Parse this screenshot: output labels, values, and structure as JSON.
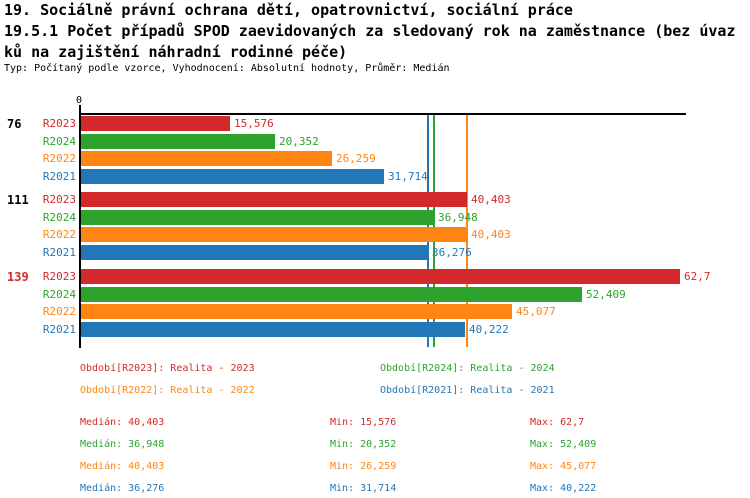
{
  "title": {
    "line1": "19. Sociálně právní ochrana dětí, opatrovnictví, sociální práce",
    "line2": "19.5.1 Počet případů SPOD zaevidovaných za sledovaný rok na zaměstnance (bez úvaz",
    "line3": "ků na zajištění náhradní rodinné péče)",
    "meta": "Typ: Počítaný podle vzorce, Vyhodnocení: Absolutní hodnoty, Průměr: Medián"
  },
  "colors": {
    "r2023": "#d4292a",
    "r2024": "#2da32d",
    "r2022": "#ff8512",
    "r2021": "#2277b8",
    "axis": "#000000",
    "background": "#ffffff"
  },
  "chart_data": {
    "type": "bar",
    "orientation": "horizontal",
    "title": "19.5.1 Počet případů SPOD zaevidovaných za sledovaný rok na zaměstnance (bez úvazků na zajištění náhradní rodinné péče)",
    "x_origin_label": "0",
    "xlim": [
      0,
      63.4
    ],
    "grid": false,
    "legend_position": "bottom",
    "series": [
      {
        "name": "R2023",
        "color": "#d4292a"
      },
      {
        "name": "R2024",
        "color": "#2da32d"
      },
      {
        "name": "R2022",
        "color": "#ff8512"
      },
      {
        "name": "R2021",
        "color": "#2277b8"
      }
    ],
    "groups": [
      {
        "label": "76",
        "label_color": "#000000",
        "bars": [
          {
            "series": "R2023",
            "value": 15.576,
            "label": "15,576"
          },
          {
            "series": "R2024",
            "value": 20.352,
            "label": "20,352"
          },
          {
            "series": "R2022",
            "value": 26.259,
            "label": "26,259"
          },
          {
            "series": "R2021",
            "value": 31.714,
            "label": "31,714"
          }
        ]
      },
      {
        "label": "111",
        "label_color": "#000000",
        "bars": [
          {
            "series": "R2023",
            "value": 40.403,
            "label": "40,403"
          },
          {
            "series": "R2024",
            "value": 36.948,
            "label": "36,948"
          },
          {
            "series": "R2022",
            "value": 40.403,
            "label": "40,403"
          },
          {
            "series": "R2021",
            "value": 36.276,
            "label": "36,276"
          }
        ]
      },
      {
        "label": "139",
        "label_color": "#d4292a",
        "bars": [
          {
            "series": "R2023",
            "value": 62.7,
            "label": "62,7"
          },
          {
            "series": "R2024",
            "value": 52.409,
            "label": "52,409"
          },
          {
            "series": "R2022",
            "value": 45.077,
            "label": "45,077"
          },
          {
            "series": "R2021",
            "value": 40.222,
            "label": "40,222"
          }
        ]
      }
    ],
    "median_lines": [
      {
        "series": "R2023",
        "value": 40.403
      },
      {
        "series": "R2021",
        "value": 36.276
      },
      {
        "series": "R2024",
        "value": 36.948
      },
      {
        "series": "R2022",
        "value": 40.403
      }
    ]
  },
  "legend": {
    "items": [
      {
        "series": "R2023",
        "label": "Období[R2023]: Realita - 2023"
      },
      {
        "series": "R2024",
        "label": "Období[R2024]: Realita - 2024"
      },
      {
        "series": "R2022",
        "label": "Období[R2022]: Realita - 2022"
      },
      {
        "series": "R2021",
        "label": "Období[R2021]: Realita - 2021"
      }
    ]
  },
  "stats": {
    "labels": {
      "median": "Medián",
      "min": "Min",
      "max": "Max"
    },
    "rows": [
      {
        "series": "R2023",
        "median": "40,403",
        "min": "15,576",
        "max": "62,7"
      },
      {
        "series": "R2024",
        "median": "36,948",
        "min": "20,352",
        "max": "52,409"
      },
      {
        "series": "R2022",
        "median": "40,403",
        "min": "26,259",
        "max": "45,077"
      },
      {
        "series": "R2021",
        "median": "36,276",
        "min": "31,714",
        "max": "40,222"
      }
    ]
  }
}
